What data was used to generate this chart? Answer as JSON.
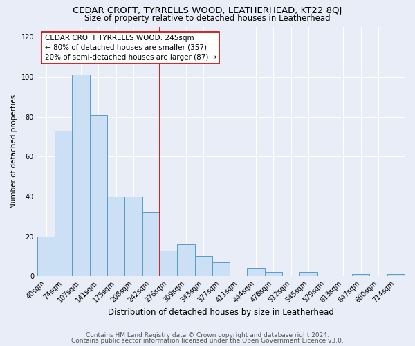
{
  "title": "CEDAR CROFT, TYRRELLS WOOD, LEATHERHEAD, KT22 8QJ",
  "subtitle": "Size of property relative to detached houses in Leatherhead",
  "xlabel": "Distribution of detached houses by size in Leatherhead",
  "ylabel": "Number of detached properties",
  "categories": [
    "40sqm",
    "74sqm",
    "107sqm",
    "141sqm",
    "175sqm",
    "208sqm",
    "242sqm",
    "276sqm",
    "309sqm",
    "343sqm",
    "377sqm",
    "411sqm",
    "444sqm",
    "478sqm",
    "512sqm",
    "545sqm",
    "579sqm",
    "613sqm",
    "647sqm",
    "680sqm",
    "714sqm"
  ],
  "values": [
    20,
    73,
    101,
    81,
    40,
    40,
    32,
    13,
    16,
    10,
    7,
    0,
    4,
    2,
    0,
    2,
    0,
    0,
    1,
    0,
    1
  ],
  "bar_color": "#cce0f5",
  "bar_edge_color": "#5b9cc4",
  "vline_x": 6.5,
  "vline_color": "#cc0000",
  "annotation_title": "CEDAR CROFT TYRRELLS WOOD: 245sqm",
  "annotation_line1": "← 80% of detached houses are smaller (357)",
  "annotation_line2": "20% of semi-detached houses are larger (87) →",
  "ylim": [
    0,
    125
  ],
  "yticks": [
    0,
    20,
    40,
    60,
    80,
    100,
    120
  ],
  "footer1": "Contains HM Land Registry data © Crown copyright and database right 2024.",
  "footer2": "Contains public sector information licensed under the Open Government Licence v3.0.",
  "bg_color": "#e8edf8",
  "plot_bg_color": "#e8edf8",
  "title_fontsize": 9.5,
  "subtitle_fontsize": 8.5,
  "xlabel_fontsize": 8.5,
  "ylabel_fontsize": 7.5,
  "tick_fontsize": 7,
  "annotation_fontsize": 7.5,
  "footer_fontsize": 6.5
}
